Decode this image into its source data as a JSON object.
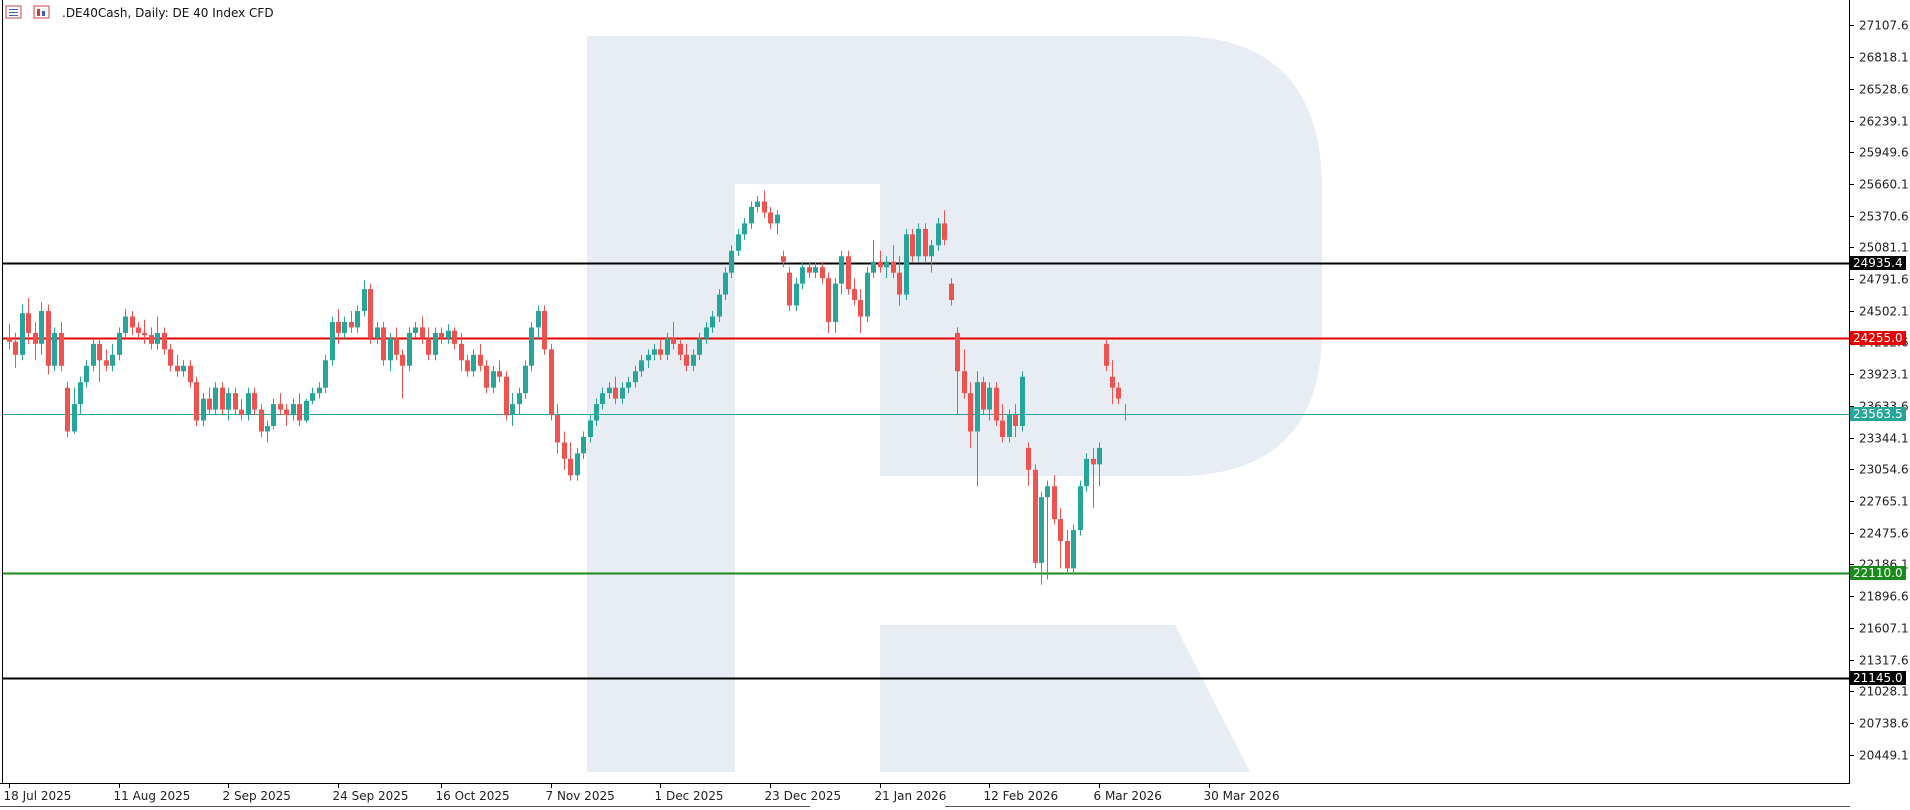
{
  "header": {
    "symbol_title": ".DE40Cash, Daily:  DE 40 Index CFD"
  },
  "icons": [
    "chart-menu-icon",
    "chart-properties-icon"
  ],
  "colors": {
    "bull": "#26a69a",
    "bear": "#ef5350",
    "resistance_red": "#e60000",
    "support_green": "#1a8a1a",
    "black_level": "#000000",
    "current_price": "#26a69a",
    "watermark": "#e8edf4",
    "axis": "#000000"
  },
  "chart_data": {
    "type": "candlestick",
    "title": ".DE40Cash, Daily:  DE 40 Index CFD",
    "ylim": [
      20190,
      27340
    ],
    "y_ticks": [
      27107.6,
      26818.1,
      26528.6,
      26239.1,
      25949.6,
      25660.1,
      25370.6,
      25081.1,
      24791.6,
      24502.1,
      24212.6,
      23923.1,
      23633.6,
      23344.1,
      23054.6,
      22765.1,
      22475.6,
      22186.1,
      21896.6,
      21607.1,
      21317.6,
      21028.1,
      20738.6,
      20449.1
    ],
    "y_tick_labels": [
      "27107.6",
      "26818.1",
      "26528.6",
      "26239.1",
      "25949.6",
      "25660.1",
      "25370.6",
      "25081.1",
      "24791.6",
      "24502.1",
      "24212.6",
      "23923.1",
      "23633.6",
      "23344.1",
      "23054.6",
      "22765.1",
      "22475.6",
      "22186.1",
      "21896.6",
      "21607.1",
      "21317.6",
      "21028.1",
      "20738.6",
      "20449.1"
    ],
    "x_tick_labels": [
      {
        "label": "18 Jul 2025",
        "bar": 0
      },
      {
        "label": "11 Aug 2025",
        "bar": 17
      },
      {
        "label": "2 Sep 2025",
        "bar": 34
      },
      {
        "label": "24 Sep 2025",
        "bar": 51
      },
      {
        "label": "16 Oct 2025",
        "bar": 67
      },
      {
        "label": "7 Nov 2025",
        "bar": 84
      },
      {
        "label": "1 Dec 2025",
        "bar": 101
      },
      {
        "label": "23 Dec 2025",
        "bar": 118
      },
      {
        "label": "21 Jan 2026",
        "bar": 135
      },
      {
        "label": "12 Feb 2026",
        "bar": 152
      },
      {
        "label": "6 Mar 2026",
        "bar": 169
      },
      {
        "label": "30 Mar 2026",
        "bar": 186
      }
    ],
    "levels": [
      {
        "name": "upper-black-level",
        "value": 24935.4,
        "label": "24935.4",
        "color": "#000000"
      },
      {
        "name": "resistance-level",
        "value": 24255.0,
        "label": "24255.0",
        "color": "#e60000"
      },
      {
        "name": "current-price-level",
        "value": 23563.5,
        "label": "23563.5",
        "color": "#26a69a"
      },
      {
        "name": "support-level",
        "value": 22110.0,
        "label": "22110.0",
        "color": "#1a8a1a"
      },
      {
        "name": "lower-black-level",
        "value": 21145.0,
        "label": "21145.0",
        "color": "#000000"
      }
    ],
    "candles": [
      [
        24250,
        24380,
        24150,
        24220
      ],
      [
        24220,
        24300,
        23980,
        24100
      ],
      [
        24100,
        24560,
        24050,
        24480
      ],
      [
        24480,
        24620,
        24200,
        24300
      ],
      [
        24300,
        24400,
        24050,
        24200
      ],
      [
        24200,
        24580,
        24100,
        24500
      ],
      [
        24500,
        24560,
        23920,
        24000
      ],
      [
        24000,
        24350,
        23950,
        24300
      ],
      [
        24300,
        24400,
        23950,
        24000
      ],
      [
        23800,
        23850,
        23350,
        23400
      ],
      [
        23400,
        23800,
        23380,
        23650
      ],
      [
        23650,
        23900,
        23550,
        23850
      ],
      [
        23850,
        24050,
        23800,
        24000
      ],
      [
        24000,
        24250,
        23950,
        24200
      ],
      [
        24200,
        24250,
        23850,
        24050
      ],
      [
        24050,
        24150,
        23950,
        24000
      ],
      [
        24000,
        24200,
        23950,
        24100
      ],
      [
        24100,
        24350,
        24050,
        24300
      ],
      [
        24300,
        24520,
        24250,
        24450
      ],
      [
        24450,
        24500,
        24280,
        24350
      ],
      [
        24350,
        24400,
        24250,
        24300
      ],
      [
        24300,
        24420,
        24200,
        24280
      ],
      [
        24280,
        24350,
        24150,
        24200
      ],
      [
        24200,
        24450,
        24150,
        24300
      ],
      [
        24300,
        24350,
        24100,
        24150
      ],
      [
        24150,
        24200,
        23950,
        24000
      ],
      [
        24000,
        24100,
        23900,
        23950
      ],
      [
        23950,
        24050,
        23900,
        24000
      ],
      [
        24000,
        24050,
        23800,
        23850
      ],
      [
        23850,
        23900,
        23450,
        23500
      ],
      [
        23500,
        23750,
        23450,
        23700
      ],
      [
        23700,
        23800,
        23550,
        23600
      ],
      [
        23600,
        23850,
        23550,
        23800
      ],
      [
        23800,
        23850,
        23550,
        23600
      ],
      [
        23600,
        23800,
        23500,
        23750
      ],
      [
        23750,
        23800,
        23550,
        23600
      ],
      [
        23600,
        23700,
        23500,
        23550
      ],
      [
        23550,
        23800,
        23500,
        23750
      ],
      [
        23750,
        23800,
        23550,
        23600
      ],
      [
        23600,
        23650,
        23350,
        23400
      ],
      [
        23400,
        23500,
        23300,
        23450
      ],
      [
        23450,
        23700,
        23420,
        23650
      ],
      [
        23650,
        23750,
        23550,
        23600
      ],
      [
        23600,
        23650,
        23450,
        23550
      ],
      [
        23550,
        23700,
        23500,
        23650
      ],
      [
        23650,
        23750,
        23450,
        23500
      ],
      [
        23500,
        23700,
        23480,
        23680
      ],
      [
        23680,
        23800,
        23650,
        23750
      ],
      [
        23750,
        23850,
        23700,
        23800
      ],
      [
        23800,
        24100,
        23750,
        24050
      ],
      [
        24050,
        24450,
        24000,
        24400
      ],
      [
        24400,
        24520,
        24200,
        24300
      ],
      [
        24300,
        24450,
        24250,
        24400
      ],
      [
        24400,
        24500,
        24300,
        24350
      ],
      [
        24350,
        24550,
        24300,
        24500
      ],
      [
        24500,
        24780,
        24450,
        24700
      ],
      [
        24700,
        24750,
        24200,
        24250
      ],
      [
        24250,
        24400,
        24200,
        24350
      ],
      [
        24350,
        24400,
        24000,
        24050
      ],
      [
        24050,
        24300,
        23950,
        24250
      ],
      [
        24250,
        24350,
        24050,
        24100
      ],
      [
        24100,
        24150,
        23700,
        24000
      ],
      [
        24000,
        24350,
        23950,
        24300
      ],
      [
        24300,
        24400,
        24250,
        24350
      ],
      [
        24350,
        24450,
        24200,
        24250
      ],
      [
        24250,
        24350,
        24050,
        24100
      ],
      [
        24100,
        24350,
        24050,
        24300
      ],
      [
        24300,
        24350,
        24200,
        24250
      ],
      [
        24250,
        24380,
        24200,
        24320
      ],
      [
        24320,
        24350,
        24150,
        24200
      ],
      [
        24200,
        24300,
        23950,
        24050
      ],
      [
        24050,
        24100,
        23900,
        23950
      ],
      [
        23950,
        24150,
        23900,
        24100
      ],
      [
        24100,
        24200,
        23950,
        24000
      ],
      [
        24000,
        24050,
        23750,
        23800
      ],
      [
        23800,
        24000,
        23750,
        23950
      ],
      [
        23950,
        24050,
        23850,
        23900
      ],
      [
        23900,
        23950,
        23500,
        23550
      ],
      [
        23550,
        23750,
        23450,
        23650
      ],
      [
        23650,
        23800,
        23550,
        23750
      ],
      [
        23750,
        24050,
        23700,
        24000
      ],
      [
        24000,
        24400,
        23950,
        24350
      ],
      [
        24350,
        24550,
        24250,
        24500
      ],
      [
        24500,
        24550,
        24100,
        24150
      ],
      [
        24150,
        24200,
        23500,
        23550
      ],
      [
        23550,
        23650,
        23200,
        23300
      ],
      [
        23300,
        23400,
        23050,
        23150
      ],
      [
        23150,
        23300,
        22950,
        23000
      ],
      [
        23000,
        23250,
        22950,
        23200
      ],
      [
        23200,
        23400,
        23150,
        23350
      ],
      [
        23350,
        23550,
        23300,
        23500
      ],
      [
        23500,
        23700,
        23450,
        23650
      ],
      [
        23650,
        23800,
        23600,
        23750
      ],
      [
        23750,
        23850,
        23700,
        23800
      ],
      [
        23800,
        23900,
        23650,
        23700
      ],
      [
        23700,
        23850,
        23650,
        23800
      ],
      [
        23800,
        23900,
        23750,
        23850
      ],
      [
        23850,
        24000,
        23800,
        23950
      ],
      [
        23950,
        24100,
        23900,
        24050
      ],
      [
        24050,
        24150,
        23980,
        24100
      ],
      [
        24100,
        24200,
        24050,
        24150
      ],
      [
        24150,
        24250,
        24050,
        24100
      ],
      [
        24100,
        24300,
        24050,
        24250
      ],
      [
        24250,
        24400,
        24150,
        24200
      ],
      [
        24200,
        24250,
        24050,
        24100
      ],
      [
        24100,
        24200,
        23950,
        24000
      ],
      [
        24000,
        24150,
        23950,
        24100
      ],
      [
        24100,
        24300,
        24050,
        24250
      ],
      [
        24250,
        24400,
        24200,
        24350
      ],
      [
        24350,
        24500,
        24300,
        24450
      ],
      [
        24450,
        24700,
        24400,
        24650
      ],
      [
        24650,
        24900,
        24600,
        24850
      ],
      [
        24850,
        25100,
        24800,
        25050
      ],
      [
        25050,
        25250,
        25000,
        25200
      ],
      [
        25200,
        25350,
        25150,
        25300
      ],
      [
        25300,
        25500,
        25250,
        25450
      ],
      [
        25450,
        25550,
        25400,
        25500
      ],
      [
        25500,
        25600,
        25350,
        25400
      ],
      [
        25400,
        25450,
        25250,
        25300
      ],
      [
        25300,
        25420,
        25200,
        25380
      ],
      [
        25000,
        25050,
        24900,
        24950
      ],
      [
        24850,
        24900,
        24500,
        24550
      ],
      [
        24550,
        24800,
        24500,
        24750
      ],
      [
        24750,
        24950,
        24700,
        24900
      ],
      [
        24900,
        24950,
        24800,
        24850
      ],
      [
        24850,
        24950,
        24800,
        24900
      ],
      [
        24900,
        24950,
        24750,
        24800
      ],
      [
        24800,
        24850,
        24300,
        24400
      ],
      [
        24400,
        24800,
        24300,
        24750
      ],
      [
        24750,
        25050,
        24650,
        25000
      ],
      [
        25000,
        25050,
        24650,
        24700
      ],
      [
        24700,
        24800,
        24550,
        24600
      ],
      [
        24600,
        24700,
        24300,
        24450
      ],
      [
        24450,
        24900,
        24400,
        24850
      ],
      [
        24850,
        25150,
        24800,
        24950
      ],
      [
        24950,
        25050,
        24850,
        24900
      ],
      [
        24900,
        25000,
        24800,
        24950
      ],
      [
        24950,
        25100,
        24800,
        24850
      ],
      [
        24850,
        25000,
        24550,
        24650
      ],
      [
        24650,
        25250,
        24600,
        25200
      ],
      [
        25200,
        25250,
        24950,
        25000
      ],
      [
        25000,
        25300,
        24950,
        25250
      ],
      [
        25250,
        25300,
        24950,
        25000
      ],
      [
        25000,
        25150,
        24850,
        25100
      ],
      [
        25100,
        25350,
        25050,
        25300
      ],
      [
        25300,
        25420,
        25100,
        25150
      ],
      [
        24750,
        24800,
        24550,
        24600
      ],
      [
        24300,
        24350,
        23550,
        23950
      ],
      [
        23950,
        24150,
        23700,
        23750
      ],
      [
        23750,
        23850,
        23250,
        23400
      ],
      [
        23400,
        23950,
        22900,
        23850
      ],
      [
        23850,
        23900,
        23550,
        23600
      ],
      [
        23600,
        23850,
        23500,
        23800
      ],
      [
        23800,
        23850,
        23450,
        23500
      ],
      [
        23500,
        23650,
        23300,
        23350
      ],
      [
        23350,
        23600,
        23300,
        23550
      ],
      [
        23550,
        23650,
        23350,
        23450
      ],
      [
        23450,
        23950,
        23400,
        23900
      ],
      [
        23250,
        23300,
        22900,
        23050
      ],
      [
        23050,
        23100,
        22150,
        22200
      ],
      [
        22200,
        22850,
        22000,
        22800
      ],
      [
        22800,
        22950,
        22050,
        22900
      ],
      [
        22900,
        23000,
        22550,
        22600
      ],
      [
        22600,
        22700,
        22150,
        22400
      ],
      [
        22400,
        22500,
        22100,
        22150
      ],
      [
        22150,
        22550,
        22100,
        22500
      ],
      [
        22500,
        22950,
        22450,
        22900
      ],
      [
        22900,
        23200,
        22850,
        23150
      ],
      [
        23150,
        23250,
        22700,
        23100
      ],
      [
        23100,
        23300,
        22900,
        23250
      ],
      [
        24200,
        24250,
        23950,
        24000
      ],
      [
        23900,
        24050,
        23650,
        23800
      ],
      [
        23800,
        23850,
        23650,
        23700
      ],
      [
        23550,
        23650,
        23500,
        23560
      ]
    ]
  }
}
